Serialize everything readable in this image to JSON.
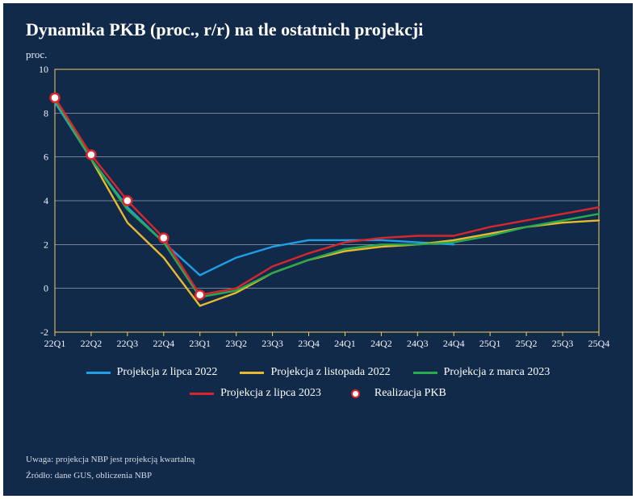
{
  "title": "Dynamika PKB (proc., r/r) na tle ostatnich projekcji",
  "y_axis_label": "proc.",
  "chart": {
    "type": "line",
    "background_color": "#122a4a",
    "plot_border_color": "#f4cf5a",
    "plot_border_width": 1,
    "grid_color": "#d6dae4",
    "grid_width": 0.5,
    "ylim": [
      -2,
      10
    ],
    "ytick_step": 2,
    "categories": [
      "22Q1",
      "22Q2",
      "22Q3",
      "22Q4",
      "23Q1",
      "23Q2",
      "23Q3",
      "23Q4",
      "24Q1",
      "24Q2",
      "24Q3",
      "24Q4",
      "25Q1",
      "25Q2",
      "25Q3",
      "25Q4"
    ],
    "tick_fontsize": 12,
    "tick_color": "#f2f4f8",
    "line_width": 2.4,
    "series": [
      {
        "id": "jul22",
        "label": "Projekcja z lipca 2022",
        "color": "#1fa0e6",
        "values": [
          8.5,
          5.9,
          3.7,
          2.1,
          0.6,
          1.4,
          1.9,
          2.2,
          2.2,
          2.2,
          2.1,
          2.0,
          null,
          null,
          null,
          null
        ]
      },
      {
        "id": "nov22",
        "label": "Projekcja z listopada 2022",
        "color": "#e7b92e",
        "values": [
          8.6,
          5.9,
          3.0,
          1.4,
          -0.8,
          -0.2,
          0.7,
          1.3,
          1.7,
          1.9,
          2.0,
          2.2,
          2.5,
          2.8,
          3.0,
          3.1
        ]
      },
      {
        "id": "mar23",
        "label": "Projekcja z marca 2023",
        "color": "#2aa94f",
        "values": [
          8.6,
          5.9,
          3.6,
          2.1,
          -0.4,
          -0.1,
          0.7,
          1.3,
          1.8,
          2.0,
          2.0,
          2.1,
          2.4,
          2.8,
          3.1,
          3.4
        ]
      },
      {
        "id": "jul23",
        "label": "Projekcja z lipca 2023",
        "color": "#d9262c",
        "values": [
          8.7,
          6.1,
          4.0,
          2.3,
          -0.3,
          0.0,
          1.0,
          1.6,
          2.1,
          2.3,
          2.4,
          2.4,
          2.8,
          3.1,
          3.4,
          3.7
        ]
      }
    ],
    "realization": {
      "id": "real",
      "label": "Realizacja PKB",
      "marker_fill": "#ffffff",
      "marker_stroke": "#d9262c",
      "marker_stroke_width": 2.5,
      "marker_radius": 5.5,
      "values": [
        8.7,
        6.1,
        4.0,
        2.3,
        -0.3,
        null,
        null,
        null,
        null,
        null,
        null,
        null,
        null,
        null,
        null,
        null
      ]
    }
  },
  "legend": {
    "fontsize": 14,
    "row1": [
      "jul22",
      "nov22",
      "mar23"
    ],
    "row2": [
      "jul23",
      "real"
    ]
  },
  "note": "Uwaga: projekcja NBP jest projekcją kwartalną",
  "source": "Źródło: dane GUS, obliczenia NBP"
}
